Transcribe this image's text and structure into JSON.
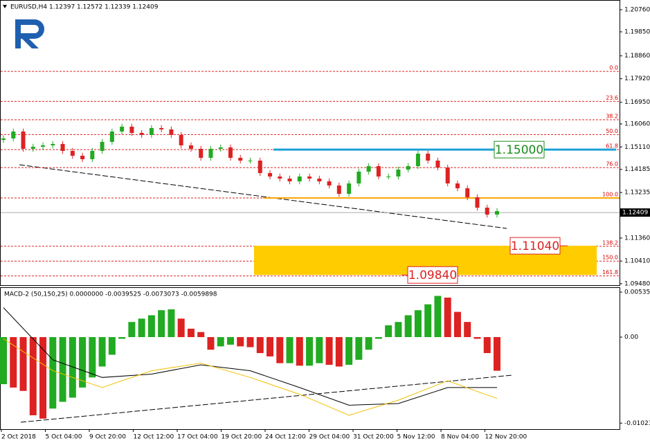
{
  "chart_data": {
    "type": "candlestick",
    "header": "EURUSD,H4  1.12397 1.12572 1.12339 1.12409",
    "ylim": [
      1.0939,
      1.2116
    ],
    "yticks": [
      {
        "value": 1.2076,
        "label": "1.20760"
      },
      {
        "value": 1.1985,
        "label": "1.19850"
      },
      {
        "value": 1.1886,
        "label": "1.18860"
      },
      {
        "value": 1.1792,
        "label": "1.17920"
      },
      {
        "value": 1.1695,
        "label": "1.16950"
      },
      {
        "value": 1.1606,
        "label": "1.16060"
      },
      {
        "value": 1.1511,
        "label": "1.15110"
      },
      {
        "value": 1.14185,
        "label": "1.14185"
      },
      {
        "value": 1.13235,
        "label": "1.13235"
      },
      {
        "value": 1.1136,
        "label": "1.11360"
      },
      {
        "value": 1.1041,
        "label": "1.10410"
      },
      {
        "value": 1.0948,
        "label": "1.09480"
      }
    ],
    "categories": [
      "2 Oct 2018",
      "5 Oct 04:00",
      "9 Oct 20:00",
      "12 Oct 12:00",
      "17 Oct 04:00",
      "19 Oct 20:00",
      "24 Oct 12:00",
      "29 Oct 04:00",
      "31 Oct 20:00",
      "5 Nov 12:00",
      "8 Nov 04:00",
      "12 Nov 20:00"
    ],
    "up_color": "#22aa22",
    "down_color": "#dd2222",
    "open": [
      1.154,
      1.1546,
      1.15745,
      1.15033,
      1.15118,
      1.15175,
      1.15232,
      1.14947,
      1.14748,
      1.14605,
      1.14947,
      1.15318,
      1.15745,
      1.15945,
      1.15688,
      1.15603,
      1.15888,
      1.15831,
      1.15603,
      1.15175,
      1.15033,
      1.14662,
      1.15033,
      1.1509,
      1.14662,
      1.14548,
      1.14548,
      1.14035,
      1.13893,
      1.13807,
      1.13693,
      1.13893,
      1.13807,
      1.13693,
      1.13522,
      1.1318,
      1.13608,
      1.14092,
      1.1432,
      1.13893,
      1.13893,
      1.14178,
      1.1432,
      1.14833,
      1.14548,
      1.14263,
      1.13608,
      1.13408,
      1.13038,
      1.1261,
      1.12325
    ],
    "high": [
      1.1558,
      1.15865,
      1.15865,
      1.15238,
      1.15295,
      1.15352,
      1.15352,
      1.15067,
      1.14868,
      1.15067,
      1.15438,
      1.15865,
      1.16065,
      1.16065,
      1.15808,
      1.16008,
      1.16008,
      1.15951,
      1.15723,
      1.15295,
      1.15153,
      1.15153,
      1.1521,
      1.1521,
      1.14782,
      1.14668,
      1.14668,
      1.14155,
      1.14013,
      1.13927,
      1.14013,
      1.14013,
      1.13927,
      1.13813,
      1.13642,
      1.13728,
      1.14212,
      1.1444,
      1.1444,
      1.14013,
      1.14298,
      1.1444,
      1.14953,
      1.14953,
      1.14668,
      1.14383,
      1.13728,
      1.13528,
      1.13158,
      1.1273,
      1.12588
    ],
    "low": [
      1.1528,
      1.1534,
      1.14913,
      1.14913,
      1.14998,
      1.15055,
      1.14827,
      1.14628,
      1.14485,
      1.14485,
      1.14827,
      1.15198,
      1.15625,
      1.15568,
      1.15483,
      1.15483,
      1.15711,
      1.15483,
      1.15055,
      1.14913,
      1.14542,
      1.14542,
      1.14913,
      1.14542,
      1.14428,
      1.14428,
      1.13915,
      1.13773,
      1.13687,
      1.13573,
      1.13573,
      1.13687,
      1.13573,
      1.13402,
      1.1306,
      1.1306,
      1.13488,
      1.13972,
      1.13773,
      1.13773,
      1.13773,
      1.14058,
      1.142,
      1.14428,
      1.14143,
      1.13488,
      1.13288,
      1.12918,
      1.1249,
      1.12205,
      1.12205
    ],
    "close": [
      1.1546,
      1.15745,
      1.15033,
      1.15118,
      1.15175,
      1.15232,
      1.14947,
      1.14748,
      1.14605,
      1.14947,
      1.15318,
      1.15745,
      1.15945,
      1.15688,
      1.15603,
      1.15888,
      1.15831,
      1.15603,
      1.15175,
      1.15033,
      1.14662,
      1.15033,
      1.1509,
      1.14662,
      1.14548,
      1.14548,
      1.14035,
      1.13893,
      1.13807,
      1.13693,
      1.13893,
      1.13807,
      1.13693,
      1.13522,
      1.1318,
      1.13608,
      1.14092,
      1.1432,
      1.13893,
      1.13893,
      1.14178,
      1.1432,
      1.14833,
      1.14548,
      1.14263,
      1.13608,
      1.13408,
      1.13038,
      1.1261,
      1.12325,
      1.12468
    ],
    "current_price": {
      "value": 1.12409,
      "label": "1.12409"
    },
    "fib_levels": [
      {
        "label": "0.0",
        "value": 1.1822
      },
      {
        "label": "23.6",
        "value": 1.1699
      },
      {
        "label": "38.2",
        "value": 1.1623
      },
      {
        "label": "50.0",
        "value": 1.1562
      },
      {
        "label": "61.8",
        "value": 1.15
      },
      {
        "label": "76.0",
        "value": 1.1426
      },
      {
        "label": "100.0",
        "value": 1.1301
      },
      {
        "label": "138.2",
        "value": 1.1102
      },
      {
        "label": "150.0",
        "value": 1.1041
      },
      {
        "label": "161.8",
        "value": 1.098
      }
    ],
    "fib_color": "#dd2222",
    "target_line": {
      "value": 1.15,
      "label": "1.15000",
      "color": "#1ea0d8"
    },
    "support_line": {
      "value": 1.1301,
      "color": "#ffa500"
    },
    "zone": {
      "low": {
        "value": 1.0984,
        "label": "1.09840"
      },
      "high": {
        "value": 1.1104,
        "label": "1.11040"
      },
      "color": "#ffcc00"
    },
    "macd": {
      "type": "histogram",
      "header": "MACD-2 (50,150,25) 0.0000000 -0.0039525 -0.0073073 -0.0059898",
      "ylim": [
        -0.01095,
        0.00593
      ],
      "yticks": [
        {
          "value": 0.005351,
          "label": "0.005351"
        },
        {
          "value": 0,
          "label": "0.00"
        },
        {
          "value": -0.010231,
          "label": "-0.010231"
        }
      ],
      "values": [
        -0.0056,
        -0.006,
        -0.0064,
        -0.0093,
        -0.0097,
        -0.0085,
        -0.0077,
        -0.0072,
        -0.006,
        -0.0048,
        -0.0035,
        -0.0021,
        -0.0002,
        0.0018,
        0.0022,
        0.0026,
        0.0032,
        0.0033,
        0.0022,
        0.001,
        0.0006,
        -0.0015,
        -0.0011,
        -0.0009,
        -0.0011,
        -0.0012,
        -0.0019,
        -0.0023,
        -0.0031,
        -0.0031,
        -0.0034,
        -0.0034,
        -0.0031,
        -0.0033,
        -0.0035,
        -0.0033,
        -0.0027,
        -0.0015,
        -0.0002,
        0.0014,
        0.0018,
        0.0026,
        0.0032,
        0.0039,
        0.0049,
        0.0047,
        0.003,
        0.0018,
        -0.0002,
        -0.0019,
        -0.004
      ],
      "lines": [
        {
          "color": "#000000",
          "values": [
            0.0035,
            -0.0027,
            -0.0048,
            -0.0044,
            -0.0033,
            -0.004,
            -0.006,
            -0.0081,
            -0.0079,
            -0.006,
            -0.006
          ]
        },
        {
          "color": "#f0c000",
          "values": [
            -0.0002,
            -0.004,
            -0.006,
            -0.004,
            -0.0031,
            -0.0048,
            -0.0068,
            -0.0093,
            -0.0075,
            -0.0052,
            -0.0073
          ]
        }
      ]
    }
  }
}
